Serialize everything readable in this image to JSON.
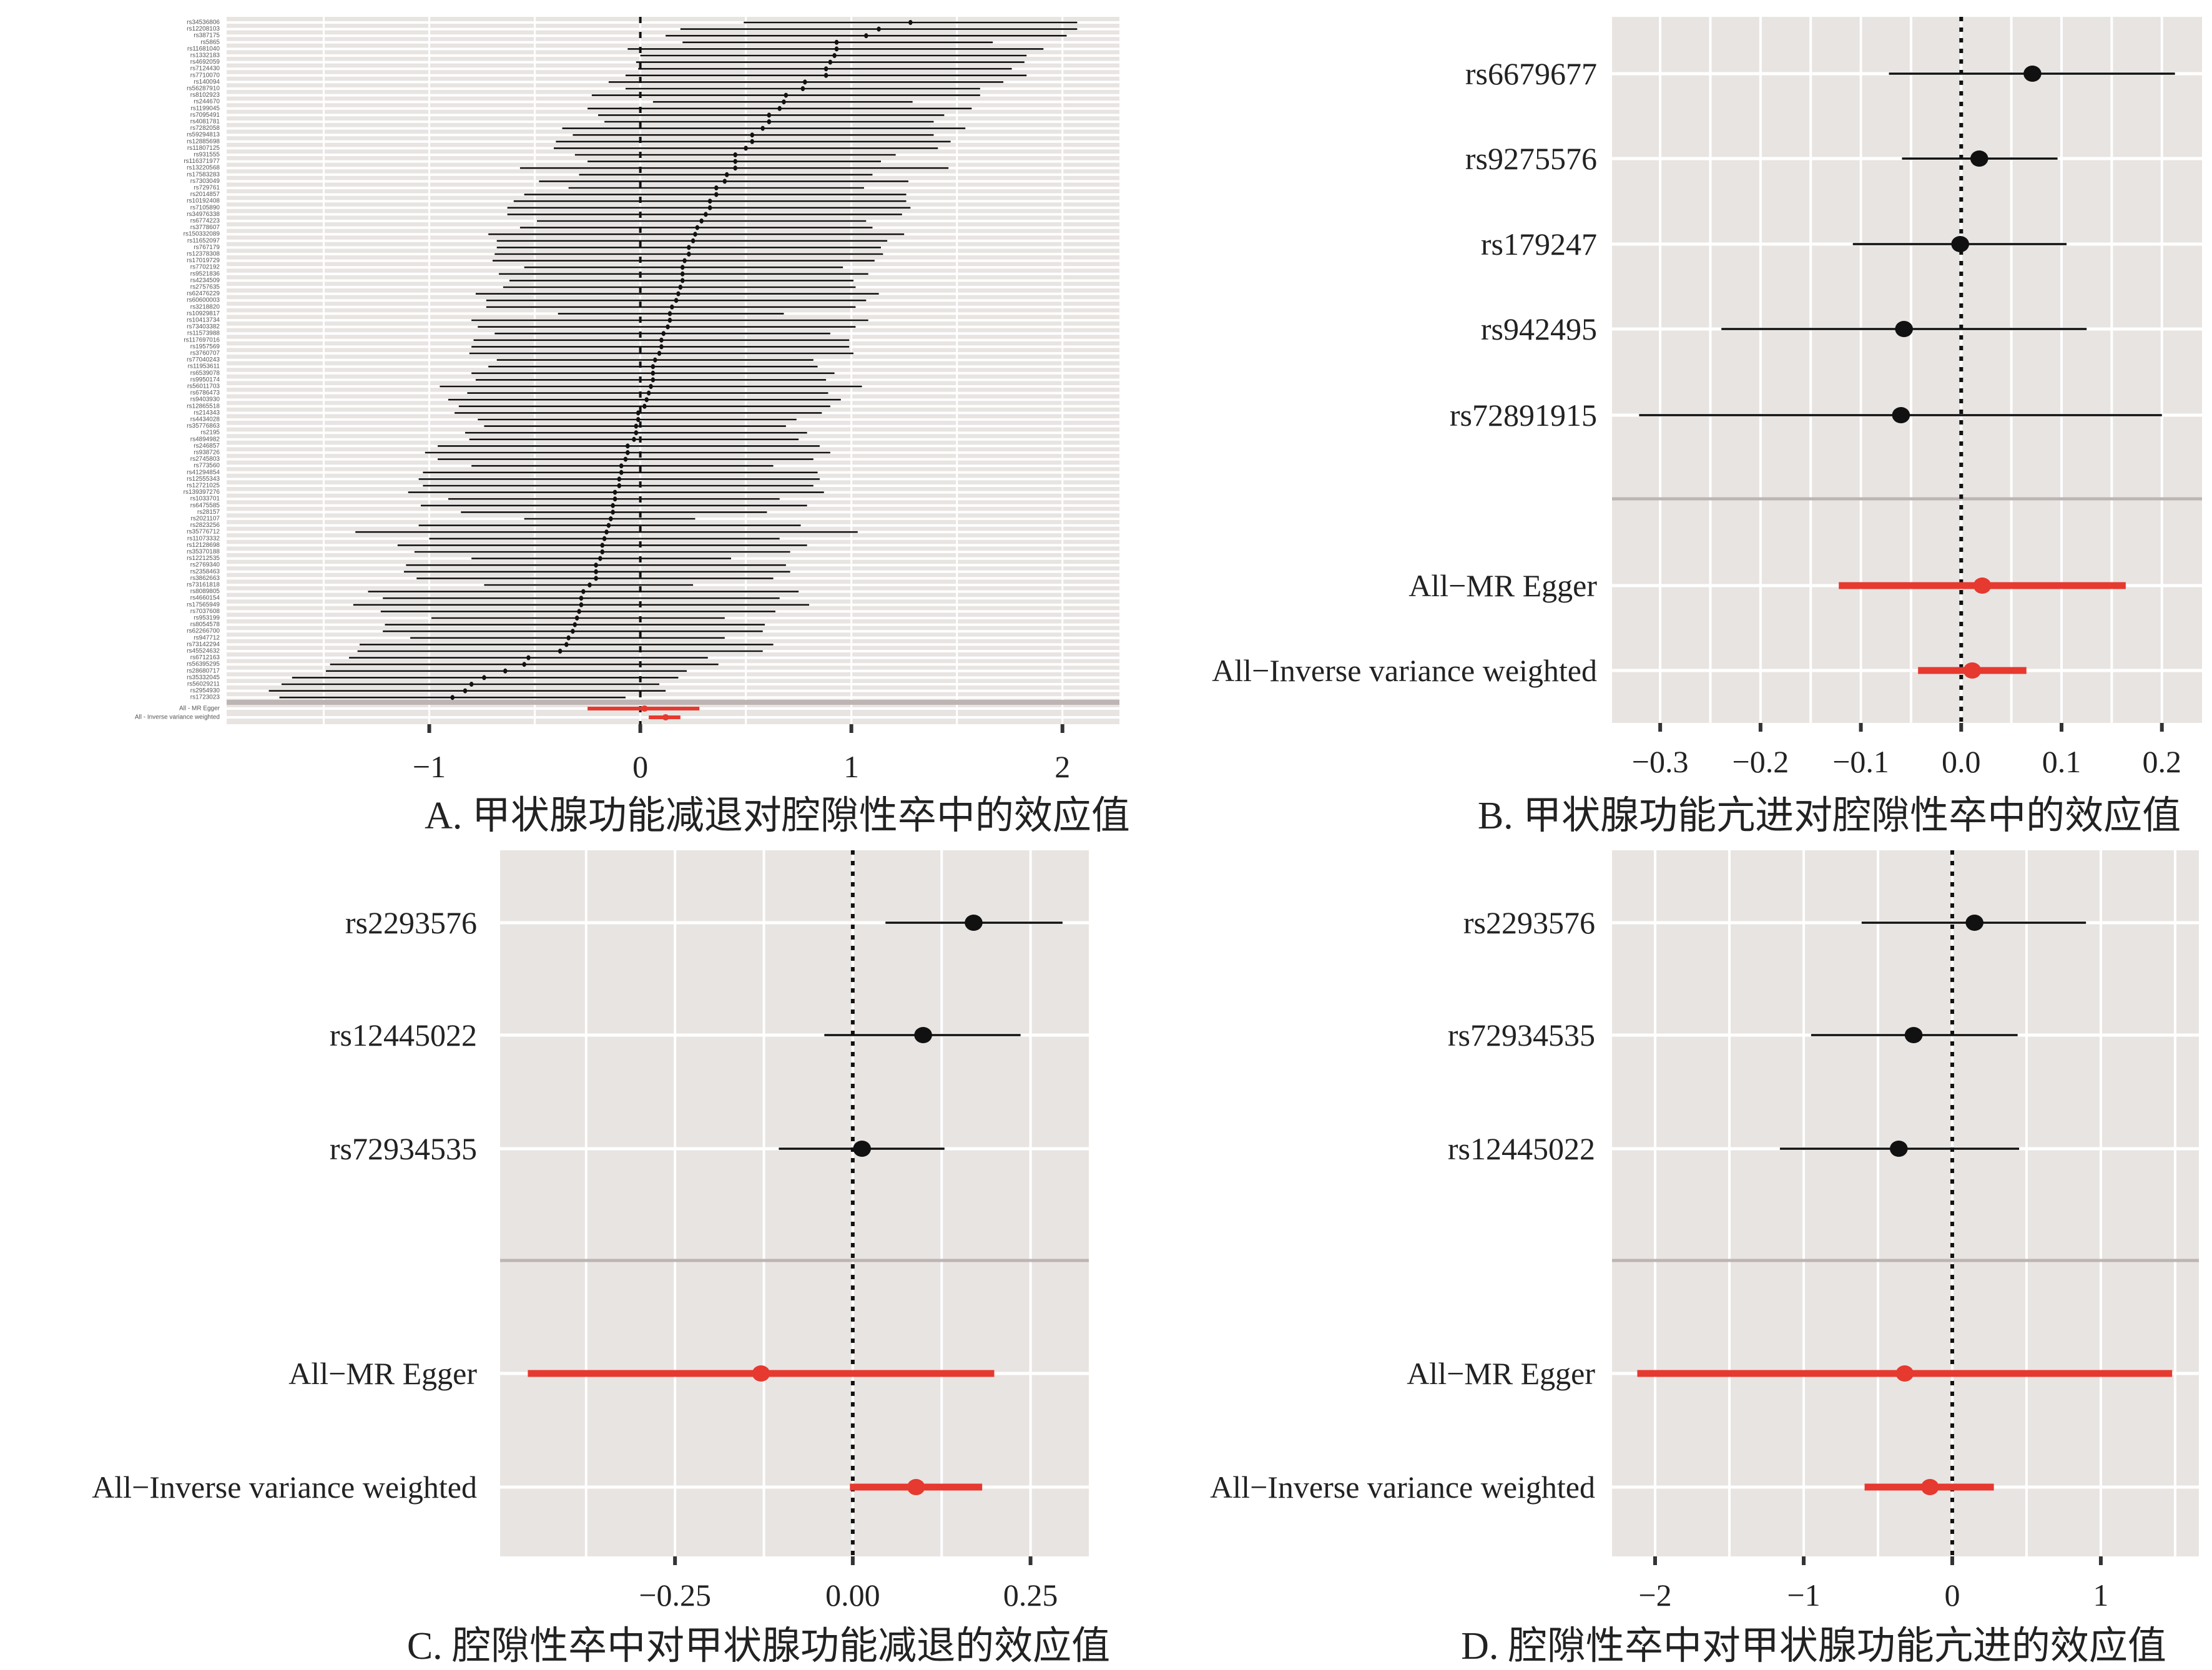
{
  "captions": {
    "a": "A. 甲状腺功能减退对腔隙性卒中的效应值",
    "b": "B. 甲状腺功能亢进对腔隙性卒中的效应值",
    "c": "C. 腔隙性卒中对甲状腺功能减退的效应值",
    "d": "D. 腔隙性卒中对甲状腺功能亢进的效应值"
  },
  "colors": {
    "point": "#111111",
    "summary": "#e6392f",
    "panel_bg": "#e8e4e2",
    "grid": "#ffffff",
    "separator": "#bcb5b3"
  },
  "chart_data": [
    {
      "id": "a",
      "type": "scatter",
      "subtype": "forest",
      "title": "A. 甲状腺功能减退对腔隙性卒中的效应值",
      "xlim": [
        -1.96,
        2.27
      ],
      "ticks": [
        {
          "v": -1,
          "label": "−1"
        },
        {
          "v": 0,
          "label": "0"
        },
        {
          "v": 1,
          "label": "1"
        },
        {
          "v": 2,
          "label": "2"
        }
      ],
      "grid": [
        -1.5,
        -1,
        -0.5,
        0,
        0.5,
        1,
        1.5,
        2
      ],
      "reference_line": 0,
      "rows": [
        {
          "label": "rs34536806",
          "est": 1.28,
          "lo": 0.49,
          "hi": 2.07
        },
        {
          "label": "rs12208103",
          "est": 1.13,
          "lo": 0.19,
          "hi": 2.07
        },
        {
          "label": "rs387175",
          "est": 1.07,
          "lo": 0.12,
          "hi": 2.02
        },
        {
          "label": "rs5865",
          "est": 0.93,
          "lo": 0.2,
          "hi": 1.67
        },
        {
          "label": "rs11681040",
          "est": 0.93,
          "lo": -0.06,
          "hi": 1.91
        },
        {
          "label": "rs1332183",
          "est": 0.92,
          "lo": 0.0,
          "hi": 1.83
        },
        {
          "label": "rs4692059",
          "est": 0.9,
          "lo": -0.02,
          "hi": 1.82
        },
        {
          "label": "rs7124430",
          "est": 0.88,
          "lo": -0.01,
          "hi": 1.76
        },
        {
          "label": "rs7710070",
          "est": 0.88,
          "lo": -0.07,
          "hi": 1.83
        },
        {
          "label": "rs140094",
          "est": 0.78,
          "lo": -0.15,
          "hi": 1.72
        },
        {
          "label": "rs56287910",
          "est": 0.77,
          "lo": -0.07,
          "hi": 1.61
        },
        {
          "label": "rs8102923",
          "est": 0.69,
          "lo": -0.23,
          "hi": 1.61
        },
        {
          "label": "rs244670",
          "est": 0.68,
          "lo": 0.06,
          "hi": 1.29
        },
        {
          "label": "rs1199045",
          "est": 0.66,
          "lo": -0.25,
          "hi": 1.57
        },
        {
          "label": "rs7095491",
          "est": 0.61,
          "lo": -0.2,
          "hi": 1.44
        },
        {
          "label": "rs4081781",
          "est": 0.61,
          "lo": -0.17,
          "hi": 1.39
        },
        {
          "label": "rs7282058",
          "est": 0.58,
          "lo": -0.37,
          "hi": 1.54
        },
        {
          "label": "rs59294813",
          "est": 0.53,
          "lo": -0.32,
          "hi": 1.39
        },
        {
          "label": "rs12885698",
          "est": 0.53,
          "lo": -0.4,
          "hi": 1.47
        },
        {
          "label": "rs11807125",
          "est": 0.5,
          "lo": -0.41,
          "hi": 1.41
        },
        {
          "label": "rs931555",
          "est": 0.45,
          "lo": -0.31,
          "hi": 1.21
        },
        {
          "label": "rs116371977",
          "est": 0.45,
          "lo": -0.25,
          "hi": 1.14
        },
        {
          "label": "rs13220568",
          "est": 0.45,
          "lo": -0.57,
          "hi": 1.46
        },
        {
          "label": "rs17583283",
          "est": 0.41,
          "lo": -0.29,
          "hi": 1.1
        },
        {
          "label": "rs7303049",
          "est": 0.4,
          "lo": -0.48,
          "hi": 1.27
        },
        {
          "label": "rs729761",
          "est": 0.36,
          "lo": -0.34,
          "hi": 1.06
        },
        {
          "label": "rs2014857",
          "est": 0.36,
          "lo": -0.55,
          "hi": 1.26
        },
        {
          "label": "rs10192408",
          "est": 0.33,
          "lo": -0.6,
          "hi": 1.26
        },
        {
          "label": "rs7105890",
          "est": 0.33,
          "lo": -0.63,
          "hi": 1.28
        },
        {
          "label": "rs34976338",
          "est": 0.31,
          "lo": -0.63,
          "hi": 1.24
        },
        {
          "label": "rs6774223",
          "est": 0.29,
          "lo": -0.49,
          "hi": 1.07
        },
        {
          "label": "rs3778607",
          "est": 0.27,
          "lo": -0.57,
          "hi": 1.1
        },
        {
          "label": "rs150332089",
          "est": 0.26,
          "lo": -0.72,
          "hi": 1.25
        },
        {
          "label": "rs11652097",
          "est": 0.25,
          "lo": -0.68,
          "hi": 1.17
        },
        {
          "label": "rs767179",
          "est": 0.23,
          "lo": -0.68,
          "hi": 1.14
        },
        {
          "label": "rs12378308",
          "est": 0.23,
          "lo": -0.69,
          "hi": 1.15
        },
        {
          "label": "rs17019729",
          "est": 0.21,
          "lo": -0.7,
          "hi": 1.11
        },
        {
          "label": "rs7702192",
          "est": 0.2,
          "lo": -0.55,
          "hi": 0.96
        },
        {
          "label": "rs9521836",
          "est": 0.2,
          "lo": -0.67,
          "hi": 1.08
        },
        {
          "label": "rs4234509",
          "est": 0.2,
          "lo": -0.62,
          "hi": 1.01
        },
        {
          "label": "rs2757635",
          "est": 0.19,
          "lo": -0.65,
          "hi": 1.02
        },
        {
          "label": "rs62476229",
          "est": 0.18,
          "lo": -0.78,
          "hi": 1.13
        },
        {
          "label": "rs60600003",
          "est": 0.17,
          "lo": -0.73,
          "hi": 1.07
        },
        {
          "label": "rs3218820",
          "est": 0.15,
          "lo": -0.73,
          "hi": 1.02
        },
        {
          "label": "rs10929817",
          "est": 0.14,
          "lo": -0.39,
          "hi": 0.68
        },
        {
          "label": "rs10413734",
          "est": 0.14,
          "lo": -0.8,
          "hi": 1.08
        },
        {
          "label": "rs73403382",
          "est": 0.13,
          "lo": -0.77,
          "hi": 1.02
        },
        {
          "label": "rs11573988",
          "est": 0.11,
          "lo": -0.69,
          "hi": 0.9
        },
        {
          "label": "rs117697016",
          "est": 0.1,
          "lo": -0.79,
          "hi": 0.99
        },
        {
          "label": "rs1957569",
          "est": 0.1,
          "lo": -0.8,
          "hi": 0.99
        },
        {
          "label": "rs3760707",
          "est": 0.09,
          "lo": -0.81,
          "hi": 1.01
        },
        {
          "label": "rs77040243",
          "est": 0.07,
          "lo": -0.68,
          "hi": 0.82
        },
        {
          "label": "rs11953611",
          "est": 0.06,
          "lo": -0.72,
          "hi": 0.84
        },
        {
          "label": "rs6539078",
          "est": 0.06,
          "lo": -0.8,
          "hi": 0.92
        },
        {
          "label": "rs9950174",
          "est": 0.06,
          "lo": -0.78,
          "hi": 0.88
        },
        {
          "label": "rs56011703",
          "est": 0.05,
          "lo": -0.95,
          "hi": 1.05
        },
        {
          "label": "rs6786473",
          "est": 0.04,
          "lo": -0.82,
          "hi": 0.89
        },
        {
          "label": "rs9403930",
          "est": 0.03,
          "lo": -0.91,
          "hi": 0.95
        },
        {
          "label": "rs12865518",
          "est": 0.02,
          "lo": -0.86,
          "hi": 0.9
        },
        {
          "label": "rs214343",
          "est": -0.01,
          "lo": -0.88,
          "hi": 0.86
        },
        {
          "label": "rs4434028",
          "est": -0.01,
          "lo": -0.77,
          "hi": 0.74
        },
        {
          "label": "rs35776863",
          "est": -0.02,
          "lo": -0.74,
          "hi": 0.69
        },
        {
          "label": "rs2195",
          "est": -0.02,
          "lo": -0.83,
          "hi": 0.79
        },
        {
          "label": "rs4894982",
          "est": -0.03,
          "lo": -0.81,
          "hi": 0.75
        },
        {
          "label": "rs246857",
          "est": -0.06,
          "lo": -0.96,
          "hi": 0.85
        },
        {
          "label": "rs938726",
          "est": -0.06,
          "lo": -1.02,
          "hi": 0.9
        },
        {
          "label": "rs2745803",
          "est": -0.07,
          "lo": -0.96,
          "hi": 0.82
        },
        {
          "label": "rs773560",
          "est": -0.09,
          "lo": -0.8,
          "hi": 0.63
        },
        {
          "label": "rs41294854",
          "est": -0.09,
          "lo": -1.03,
          "hi": 0.84
        },
        {
          "label": "rs12555343",
          "est": -0.1,
          "lo": -1.05,
          "hi": 0.85
        },
        {
          "label": "rs12721025",
          "est": -0.1,
          "lo": -1.03,
          "hi": 0.82
        },
        {
          "label": "rs139397276",
          "est": -0.12,
          "lo": -1.1,
          "hi": 0.87
        },
        {
          "label": "rs1033701",
          "est": -0.12,
          "lo": -0.91,
          "hi": 0.66
        },
        {
          "label": "rs6475585",
          "est": -0.13,
          "lo": -1.04,
          "hi": 0.79
        },
        {
          "label": "rs28157",
          "est": -0.13,
          "lo": -0.85,
          "hi": 0.6
        },
        {
          "label": "rs2021107",
          "est": -0.14,
          "lo": -0.55,
          "hi": 0.26
        },
        {
          "label": "rs2823256",
          "est": -0.15,
          "lo": -1.05,
          "hi": 0.76
        },
        {
          "label": "rs35776712",
          "est": -0.16,
          "lo": -1.35,
          "hi": 1.03
        },
        {
          "label": "rs11073332",
          "est": -0.17,
          "lo": -1.0,
          "hi": 0.66
        },
        {
          "label": "rs12128698",
          "est": -0.18,
          "lo": -1.15,
          "hi": 0.79
        },
        {
          "label": "rs35370188",
          "est": -0.18,
          "lo": -1.07,
          "hi": 0.71
        },
        {
          "label": "rs12212535",
          "est": -0.19,
          "lo": -0.8,
          "hi": 0.43
        },
        {
          "label": "rs2769340",
          "est": -0.21,
          "lo": -1.11,
          "hi": 0.69
        },
        {
          "label": "rs2358463",
          "est": -0.21,
          "lo": -1.12,
          "hi": 0.71
        },
        {
          "label": "rs3862663",
          "est": -0.21,
          "lo": -1.06,
          "hi": 0.63
        },
        {
          "label": "rs73161818",
          "est": -0.24,
          "lo": -0.74,
          "hi": 0.25
        },
        {
          "label": "rs8089805",
          "est": -0.27,
          "lo": -1.29,
          "hi": 0.75
        },
        {
          "label": "rs4660154",
          "est": -0.28,
          "lo": -1.22,
          "hi": 0.66
        },
        {
          "label": "rs17565949",
          "est": -0.28,
          "lo": -1.36,
          "hi": 0.8
        },
        {
          "label": "rs7037608",
          "est": -0.29,
          "lo": -1.23,
          "hi": 0.64
        },
        {
          "label": "rs953199",
          "est": -0.3,
          "lo": -0.99,
          "hi": 0.4
        },
        {
          "label": "rs8054578",
          "est": -0.31,
          "lo": -1.21,
          "hi": 0.59
        },
        {
          "label": "rs62266700",
          "est": -0.32,
          "lo": -1.22,
          "hi": 0.58
        },
        {
          "label": "rs947712",
          "est": -0.34,
          "lo": -1.09,
          "hi": 0.4
        },
        {
          "label": "rs73142294",
          "est": -0.35,
          "lo": -1.33,
          "hi": 0.63
        },
        {
          "label": "rs45524632",
          "est": -0.38,
          "lo": -1.34,
          "hi": 0.58
        },
        {
          "label": "rs6712163",
          "est": -0.53,
          "lo": -1.38,
          "hi": 0.32
        },
        {
          "label": "rs56395295",
          "est": -0.55,
          "lo": -1.47,
          "hi": 0.37
        },
        {
          "label": "rs28680717",
          "est": -0.64,
          "lo": -1.49,
          "hi": 0.22
        },
        {
          "label": "rs35332045",
          "est": -0.74,
          "lo": -1.65,
          "hi": 0.18
        },
        {
          "label": "rs56029211",
          "est": -0.8,
          "lo": -1.7,
          "hi": 0.09
        },
        {
          "label": "rs2954930",
          "est": -0.83,
          "lo": -1.76,
          "hi": 0.12
        },
        {
          "label": "rs1723023",
          "est": -0.89,
          "lo": -1.71,
          "hi": -0.07
        }
      ],
      "summary": [
        {
          "label": "All - MR Egger",
          "est": 0.02,
          "lo": -0.25,
          "hi": 0.28
        },
        {
          "label": "All - Inverse variance weighted",
          "est": 0.12,
          "lo": 0.04,
          "hi": 0.19
        }
      ]
    },
    {
      "id": "b",
      "type": "scatter",
      "subtype": "forest",
      "title": "B. 甲状腺功能亢进对腔隙性卒中的效应值",
      "xlim": [
        -0.348,
        0.24
      ],
      "ticks": [
        {
          "v": -0.3,
          "label": "−0.3"
        },
        {
          "v": -0.2,
          "label": "−0.2"
        },
        {
          "v": -0.1,
          "label": "−0.1"
        },
        {
          "v": 0,
          "label": "0.0"
        },
        {
          "v": 0.1,
          "label": "0.1"
        },
        {
          "v": 0.2,
          "label": "0.2"
        }
      ],
      "grid": [
        -0.3,
        -0.25,
        -0.2,
        -0.15,
        -0.1,
        -0.05,
        0,
        0.05,
        0.1,
        0.15,
        0.2
      ],
      "reference_line": 0,
      "rows": [
        {
          "label": "rs6679677",
          "est": 0.071,
          "lo": -0.072,
          "hi": 0.213
        },
        {
          "label": "rs9275576",
          "est": 0.018,
          "lo": -0.059,
          "hi": 0.096
        },
        {
          "label": "rs179247",
          "est": -0.001,
          "lo": -0.108,
          "hi": 0.105
        },
        {
          "label": "rs942495",
          "est": -0.057,
          "lo": -0.239,
          "hi": 0.125
        },
        {
          "label": "rs72891915",
          "est": -0.06,
          "lo": -0.321,
          "hi": 0.2
        }
      ],
      "summary": [
        {
          "label": "All−MR Egger",
          "est": 0.021,
          "lo": -0.122,
          "hi": 0.164
        },
        {
          "label": "All−Inverse variance weighted",
          "est": 0.011,
          "lo": -0.043,
          "hi": 0.065
        }
      ]
    },
    {
      "id": "c",
      "type": "scatter",
      "subtype": "forest",
      "title": "C. 腔隙性卒中对甲状腺功能减退的效应值",
      "xlim": [
        -0.496,
        0.332
      ],
      "ticks": [
        {
          "v": -0.25,
          "label": "−0.25"
        },
        {
          "v": 0,
          "label": "0.00"
        },
        {
          "v": 0.25,
          "label": "0.25"
        }
      ],
      "grid": [
        -0.375,
        -0.25,
        -0.125,
        0,
        0.125,
        0.25
      ],
      "reference_line": 0,
      "rows": [
        {
          "label": "rs2293576",
          "est": 0.17,
          "lo": 0.046,
          "hi": 0.295
        },
        {
          "label": "rs12445022",
          "est": 0.099,
          "lo": -0.04,
          "hi": 0.236
        },
        {
          "label": "rs72934535",
          "est": 0.013,
          "lo": -0.104,
          "hi": 0.129
        }
      ],
      "summary": [
        {
          "label": "All−MR Egger",
          "est": -0.129,
          "lo": -0.457,
          "hi": 0.199
        },
        {
          "label": "All−Inverse variance weighted",
          "est": 0.089,
          "lo": -0.004,
          "hi": 0.182
        }
      ]
    },
    {
      "id": "d",
      "type": "scatter",
      "subtype": "forest",
      "title": "D. 腔隙性卒中对甲状腺功能亢进的效应值",
      "xlim": [
        -2.29,
        1.66
      ],
      "ticks": [
        {
          "v": -2,
          "label": "−2"
        },
        {
          "v": -1,
          "label": "−1"
        },
        {
          "v": 0,
          "label": "0"
        },
        {
          "v": 1,
          "label": "1"
        }
      ],
      "grid": [
        -2,
        -1.5,
        -1,
        -0.5,
        0,
        0.5,
        1,
        1.5
      ],
      "reference_line": 0,
      "rows": [
        {
          "label": "rs2293576",
          "est": 0.15,
          "lo": -0.61,
          "hi": 0.9
        },
        {
          "label": "rs72934535",
          "est": -0.26,
          "lo": -0.95,
          "hi": 0.44
        },
        {
          "label": "rs12445022",
          "est": -0.36,
          "lo": -1.16,
          "hi": 0.45
        }
      ],
      "summary": [
        {
          "label": "All−MR Egger",
          "est": -0.32,
          "lo": -2.12,
          "hi": 1.48
        },
        {
          "label": "All−Inverse variance weighted",
          "est": -0.15,
          "lo": -0.59,
          "hi": 0.28
        }
      ]
    }
  ]
}
